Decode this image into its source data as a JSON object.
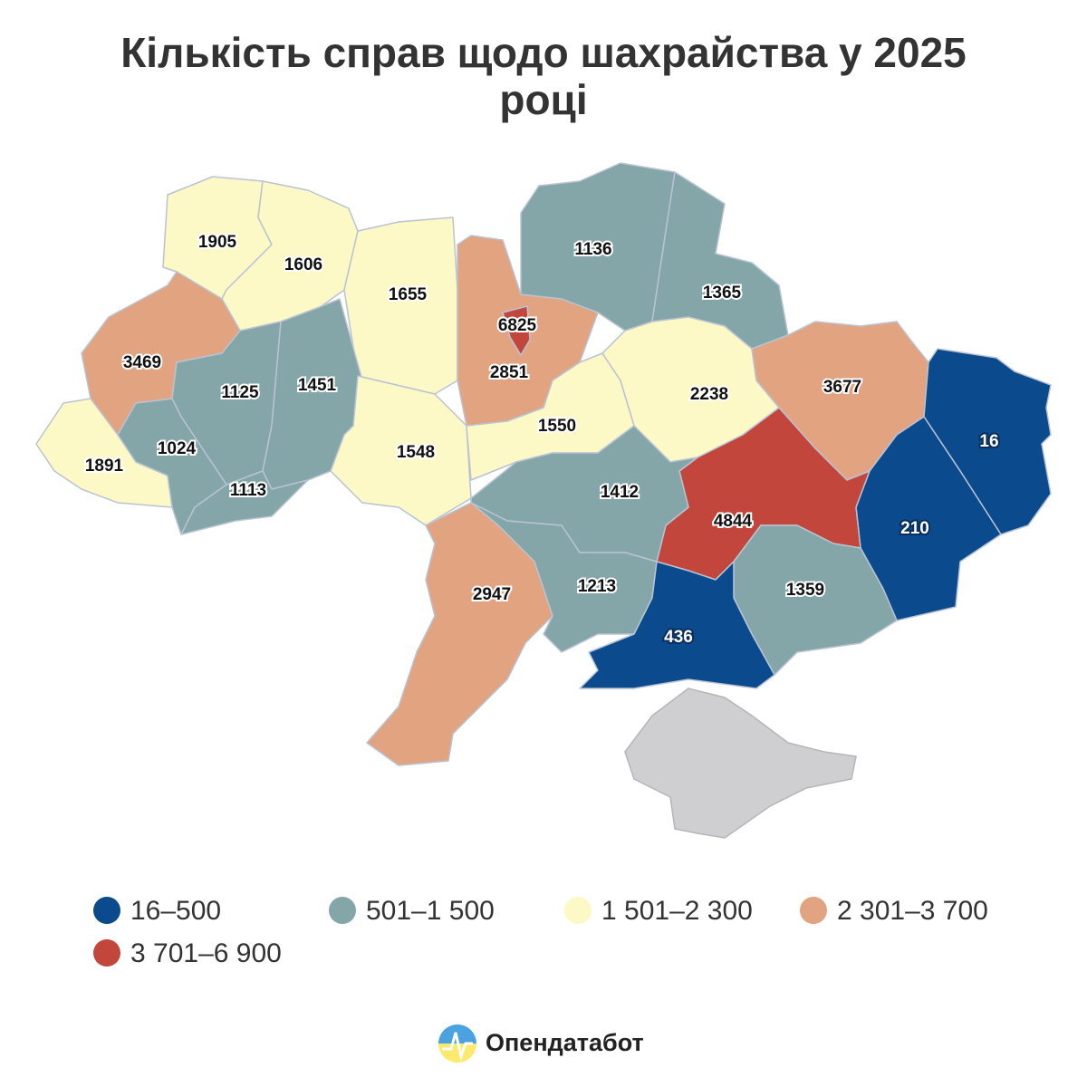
{
  "title": "Кількість справ щодо шахрайства у 2025 році",
  "map": {
    "values": [
      1905,
      1606,
      1655,
      2851,
      6825,
      1136,
      1365,
      3469,
      1125,
      1451,
      1891,
      1024,
      1113,
      1548,
      1550,
      2238,
      3677,
      16,
      210,
      4844,
      1412,
      1213,
      2947,
      1359,
      436
    ],
    "legend": [
      {
        "min": 16,
        "max": 500,
        "label": "16–500",
        "color": "#0b4a8c"
      },
      {
        "min": 501,
        "max": 1500,
        "label": "501–1 500",
        "color": "#84a6a8"
      },
      {
        "min": 1501,
        "max": 2300,
        "label": "1 501–2 300",
        "color": "#fdf9c6"
      },
      {
        "min": 2301,
        "max": 3700,
        "label": "2 301–3 700",
        "color": "#e2a380"
      },
      {
        "min": 3701,
        "max": 6900,
        "label": "3 701–6 900",
        "color": "#c3463c"
      }
    ]
  },
  "brand": "Опендатабот"
}
